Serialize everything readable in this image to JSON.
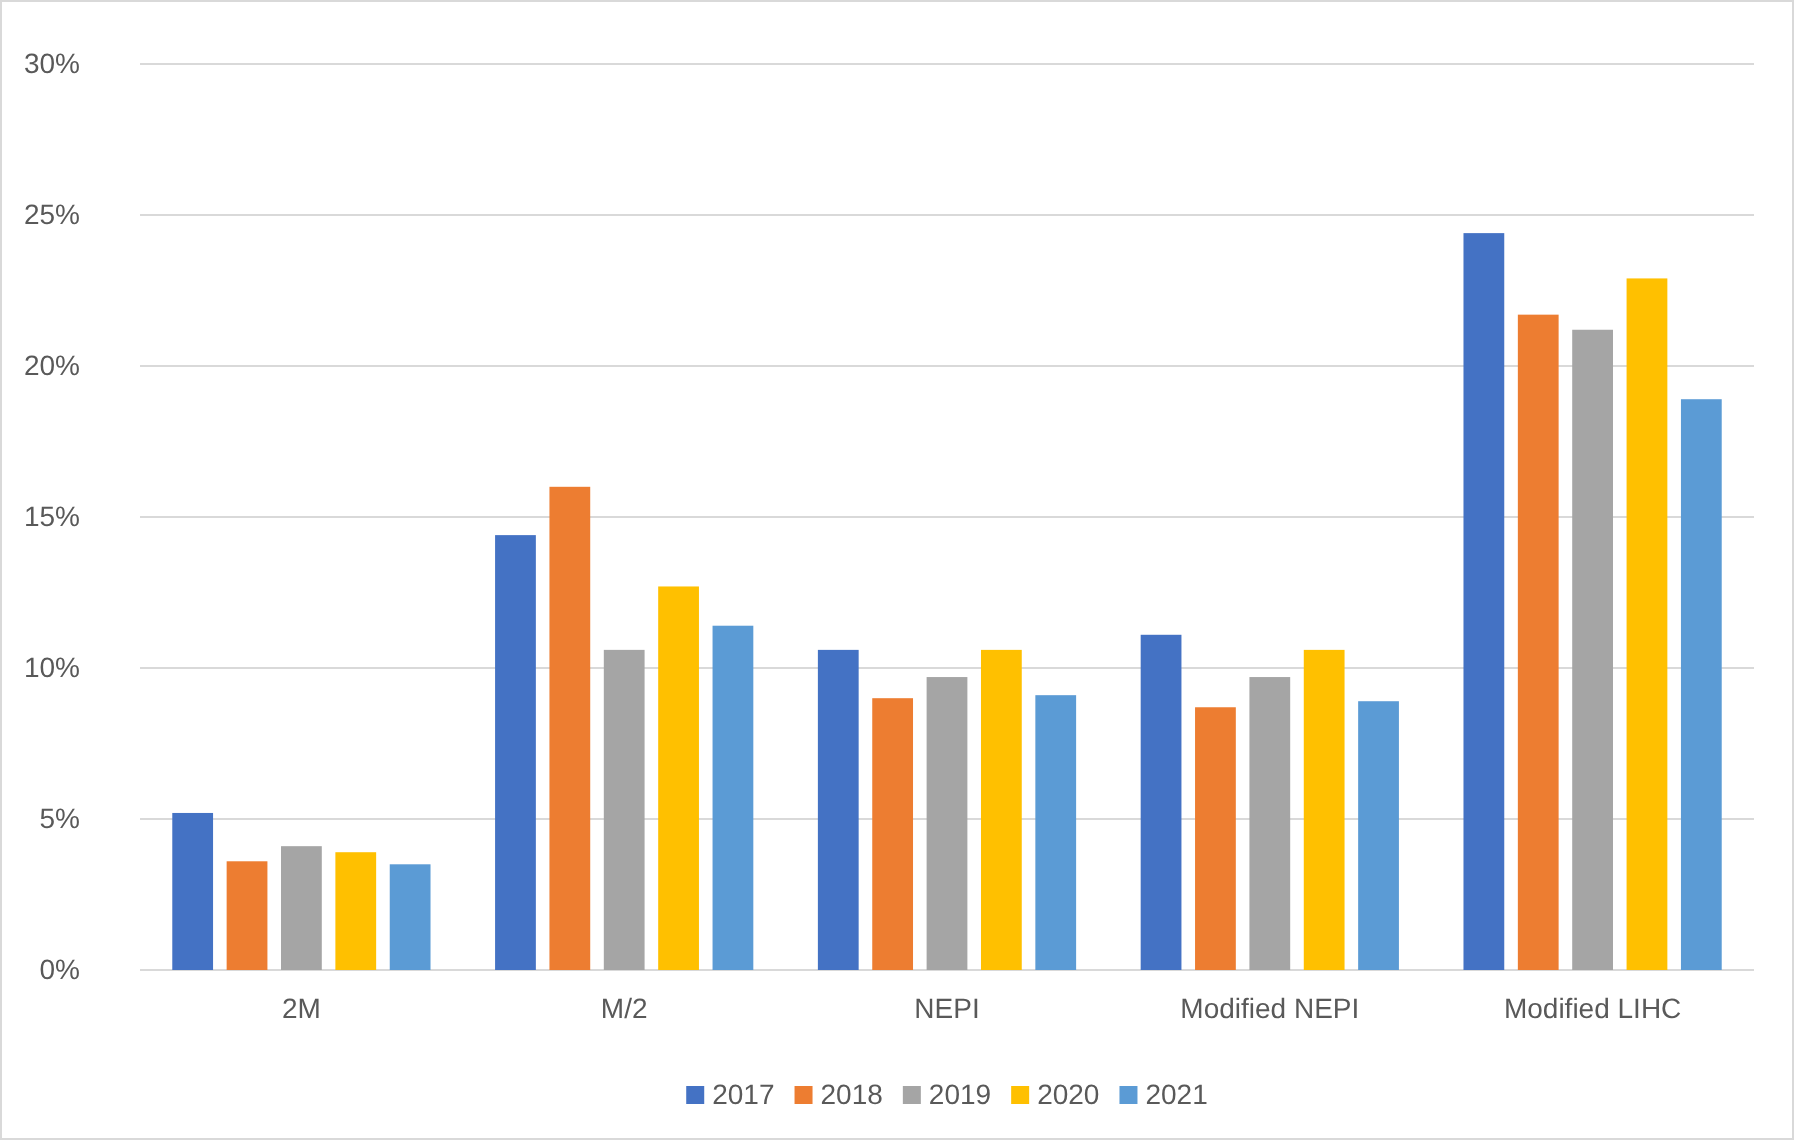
{
  "chart_data": {
    "type": "bar",
    "categories": [
      "2M",
      "M/2",
      "NEPI",
      "Modified NEPI",
      "Modified LIHC"
    ],
    "series": [
      {
        "name": "2017",
        "color": "#4472c4",
        "values": [
          5.2,
          14.4,
          10.6,
          11.1,
          24.4
        ]
      },
      {
        "name": "2018",
        "color": "#ed7d31",
        "values": [
          3.6,
          16.0,
          9.0,
          8.7,
          21.7
        ]
      },
      {
        "name": "2019",
        "color": "#a5a5a5",
        "values": [
          4.1,
          10.6,
          9.7,
          9.7,
          21.2
        ]
      },
      {
        "name": "2020",
        "color": "#ffc000",
        "values": [
          3.9,
          12.7,
          10.6,
          10.6,
          22.9
        ]
      },
      {
        "name": "2021",
        "color": "#5b9bd5",
        "values": [
          3.5,
          11.4,
          9.1,
          8.9,
          18.9
        ]
      }
    ],
    "ylim": [
      0,
      30
    ],
    "yticks": [
      {
        "value": 0,
        "label": "0%"
      },
      {
        "value": 5,
        "label": "5%"
      },
      {
        "value": 10,
        "label": "10%"
      },
      {
        "value": 15,
        "label": "15%"
      },
      {
        "value": 20,
        "label": "20%"
      },
      {
        "value": 25,
        "label": "25%"
      },
      {
        "value": 30,
        "label": "30%"
      }
    ],
    "grid": "y",
    "legend": "bottom"
  }
}
